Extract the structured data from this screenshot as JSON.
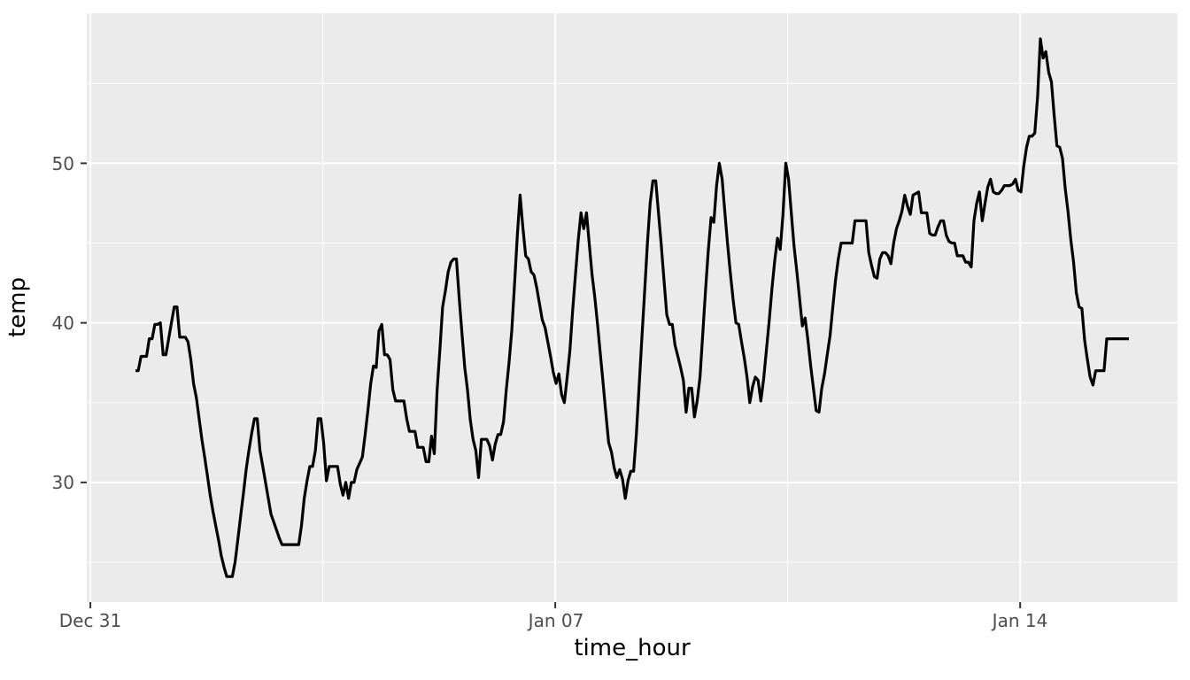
{
  "chart_data": {
    "type": "line",
    "title": "",
    "xlabel": "time_hour",
    "ylabel": "temp",
    "x_unit": "hour index (0 = first observation, one point per hour)",
    "grid": true,
    "legend": "none",
    "colors": {
      "panel_background": "#EBEBEB",
      "gridline": "#FFFFFF",
      "tick_mark": "#333333",
      "tick_label": "#4D4D4D",
      "axis_title": "#000000",
      "line": "#000000"
    },
    "axes": {
      "x": {
        "label": "time_hour",
        "domain_hours": [
          -17.6,
          376.6
        ],
        "ticks": [
          {
            "label": "Dec 31",
            "hour": -16.3
          },
          {
            "label": "Jan 07",
            "hour": 151.7
          },
          {
            "label": "Jan 14",
            "hour": 319.7
          }
        ],
        "minor_gridline_hours": [
          67.7,
          235.7
        ]
      },
      "y": {
        "label": "temp",
        "domain": [
          22.5,
          59.4
        ],
        "ticks": [
          {
            "label": "30",
            "value": 30
          },
          {
            "label": "40",
            "value": 40
          },
          {
            "label": "50",
            "value": 50
          }
        ],
        "minor_gridline_values": [
          25,
          35,
          45,
          55
        ]
      }
    },
    "series": [
      {
        "name": "temp",
        "line_color": "#000000",
        "values": [
          37.0,
          37.0,
          37.9,
          37.9,
          37.9,
          39.0,
          39.0,
          39.9,
          39.9,
          40.0,
          38.0,
          38.0,
          39.0,
          40.0,
          41.0,
          41.0,
          39.1,
          39.1,
          39.1,
          38.8,
          37.7,
          36.2,
          35.3,
          34.0,
          32.7,
          31.6,
          30.4,
          29.2,
          28.2,
          27.3,
          26.4,
          25.4,
          24.7,
          24.1,
          24.1,
          24.1,
          25.0,
          26.4,
          27.9,
          29.3,
          30.8,
          32.0,
          33.1,
          34.0,
          34.0,
          32.0,
          31.0,
          30.0,
          29.0,
          28.0,
          27.5,
          27.0,
          26.5,
          26.1,
          26.1,
          26.1,
          26.1,
          26.1,
          26.1,
          26.1,
          27.3,
          29.0,
          30.1,
          31.0,
          31.0,
          32.0,
          34.0,
          34.0,
          32.5,
          30.1,
          31.0,
          31.0,
          31.0,
          31.0,
          29.9,
          29.2,
          30.0,
          29.0,
          30.0,
          30.0,
          30.8,
          31.2,
          31.6,
          33.0,
          34.5,
          36.2,
          37.3,
          37.2,
          39.5,
          39.9,
          38.0,
          38.0,
          37.7,
          35.8,
          35.1,
          35.1,
          35.1,
          35.1,
          34.0,
          33.2,
          33.2,
          33.2,
          32.2,
          32.2,
          32.2,
          31.3,
          31.3,
          32.9,
          31.8,
          35.8,
          38.3,
          41.0,
          42.0,
          43.2,
          43.8,
          44.0,
          44.0,
          41.5,
          39.3,
          37.2,
          35.8,
          33.9,
          32.7,
          32.0,
          30.3,
          32.7,
          32.7,
          32.7,
          32.3,
          31.4,
          32.4,
          33.0,
          33.0,
          33.8,
          35.8,
          37.5,
          39.5,
          42.5,
          45.5,
          48.0,
          46.0,
          44.2,
          44.0,
          43.2,
          43.0,
          42.2,
          41.2,
          40.2,
          39.7,
          38.8,
          37.9,
          36.9,
          36.2,
          36.8,
          35.5,
          35.0,
          36.6,
          38.3,
          40.8,
          43.0,
          45.2,
          46.9,
          45.9,
          46.9,
          44.9,
          43.0,
          41.6,
          39.9,
          38.0,
          36.2,
          34.3,
          32.5,
          31.9,
          30.9,
          30.3,
          30.8,
          30.2,
          29.0,
          30.1,
          30.7,
          30.7,
          33.0,
          36.0,
          39.0,
          42.0,
          45.0,
          47.5,
          48.9,
          48.9,
          46.9,
          44.9,
          42.7,
          40.5,
          39.9,
          39.9,
          38.6,
          37.9,
          37.2,
          36.4,
          34.4,
          35.9,
          35.9,
          34.1,
          35.1,
          36.6,
          39.3,
          42.0,
          44.5,
          46.6,
          46.3,
          48.6,
          50.0,
          49.0,
          46.9,
          44.9,
          43.1,
          41.4,
          40.0,
          39.9,
          38.8,
          37.8,
          36.6,
          35.0,
          36.0,
          36.6,
          36.4,
          35.1,
          36.5,
          38.3,
          40.1,
          42.1,
          43.9,
          45.3,
          44.6,
          46.8,
          50.0,
          49.0,
          46.9,
          44.8,
          43.2,
          41.5,
          39.8,
          40.3,
          38.9,
          37.3,
          35.9,
          34.5,
          34.4,
          35.9,
          36.8,
          38.0,
          39.2,
          41.0,
          42.7,
          44.0,
          45.0,
          45.0,
          45.0,
          45.0,
          45.0,
          46.4,
          46.4,
          46.4,
          46.4,
          46.4,
          44.4,
          43.6,
          42.9,
          42.8,
          44.0,
          44.4,
          44.4,
          44.2,
          43.7,
          45.0,
          45.9,
          46.4,
          47.0,
          48.0,
          47.3,
          46.8,
          48.0,
          48.1,
          48.2,
          46.9,
          46.9,
          46.9,
          45.6,
          45.5,
          45.5,
          46.0,
          46.4,
          46.4,
          45.5,
          45.1,
          45.0,
          45.0,
          44.2,
          44.2,
          44.2,
          43.8,
          43.8,
          43.5,
          46.4,
          47.5,
          48.2,
          46.4,
          47.5,
          48.5,
          49.0,
          48.2,
          48.1,
          48.1,
          48.3,
          48.6,
          48.6,
          48.6,
          48.7,
          49.0,
          48.3,
          48.2,
          49.8,
          51.0,
          51.7,
          51.7,
          51.9,
          54.2,
          57.8,
          56.6,
          57.0,
          55.7,
          55.1,
          53.0,
          51.1,
          51.0,
          50.3,
          48.4,
          47.0,
          45.2,
          43.8,
          41.9,
          41.0,
          40.9,
          38.9,
          37.7,
          36.6,
          36.1,
          37.0,
          37.0,
          37.0,
          37.0,
          39.0,
          39.0,
          39.0,
          39.0,
          39.0,
          39.0,
          39.0,
          39.0,
          39.0
        ]
      }
    ]
  }
}
